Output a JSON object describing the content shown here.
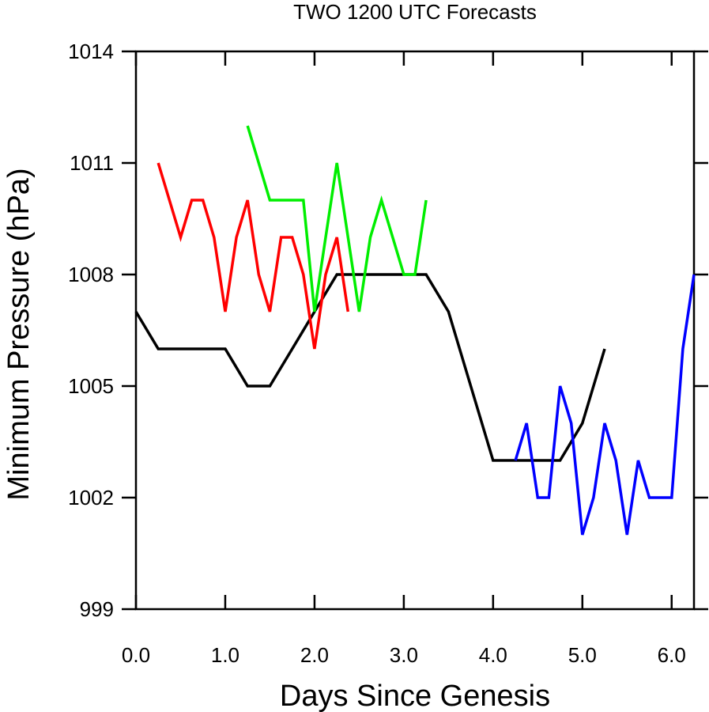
{
  "chart_data": {
    "type": "line",
    "title": "TWO 1200 UTC Forecasts",
    "xlabel": "Days Since Genesis",
    "ylabel": "Minimum Pressure (hPa)",
    "xlim": [
      0,
      6.25
    ],
    "ylim": [
      999,
      1014
    ],
    "xticks": [
      0,
      1,
      2,
      3,
      4,
      5,
      6
    ],
    "xtick_labels": [
      "0.0",
      "1.0",
      "2.0",
      "3.0",
      "4.0",
      "5.0",
      "6.0"
    ],
    "yticks": [
      999,
      1002,
      1005,
      1008,
      1011,
      1014
    ],
    "ytick_labels": [
      "999",
      "1002",
      "1005",
      "1008",
      "1011",
      "1014"
    ],
    "grid": false,
    "legend": "none",
    "series": [
      {
        "color": "#000000",
        "x": [
          0,
          0.25,
          0.5,
          0.75,
          1.0,
          1.25,
          1.5,
          1.75,
          2.0,
          2.25,
          2.5,
          2.75,
          3.0,
          3.25,
          3.5,
          3.75,
          4.0,
          4.25,
          4.5,
          4.75,
          5.0,
          5.25
        ],
        "y": [
          1007,
          1006,
          1006,
          1006,
          1006,
          1005,
          1005,
          1006,
          1007,
          1008,
          1008,
          1008,
          1008,
          1008,
          1007,
          1005,
          1003,
          1003,
          1003,
          1003,
          1004,
          1006
        ]
      },
      {
        "color": "#ff0000",
        "x": [
          0.25,
          0.5,
          0.625,
          0.75,
          0.875,
          1.0,
          1.125,
          1.25,
          1.375,
          1.5,
          1.625,
          1.75,
          1.875,
          2.0,
          2.125,
          2.25,
          2.375
        ],
        "y": [
          1011,
          1009,
          1010,
          1010,
          1009,
          1007,
          1009,
          1010,
          1008,
          1007,
          1009,
          1009,
          1008,
          1006,
          1008,
          1009,
          1007
        ]
      },
      {
        "color": "#00ee00",
        "x": [
          1.25,
          1.5,
          1.625,
          1.75,
          1.875,
          2.0,
          2.125,
          2.25,
          2.375,
          2.5,
          2.625,
          2.75,
          2.875,
          3.0,
          3.125,
          3.25
        ],
        "y": [
          1012,
          1010,
          1010,
          1010,
          1010,
          1007,
          1009,
          1011,
          1009,
          1007,
          1009,
          1010,
          1009,
          1008,
          1008,
          1010
        ]
      },
      {
        "color": "#0000ff",
        "x": [
          4.25,
          4.375,
          4.5,
          4.625,
          4.75,
          4.875,
          5.0,
          5.125,
          5.25,
          5.375,
          5.5,
          5.625,
          5.75,
          5.875,
          6.0,
          6.125,
          6.25
        ],
        "y": [
          1003,
          1004,
          1002,
          1002,
          1005,
          1004,
          1001,
          1002,
          1004,
          1003,
          1001,
          1003,
          1002,
          1002,
          1002,
          1006,
          1008
        ]
      }
    ]
  }
}
